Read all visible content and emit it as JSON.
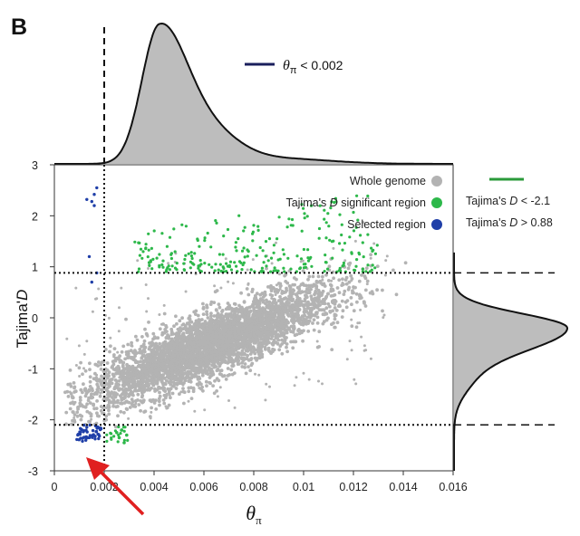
{
  "panel_label": "B",
  "chart_data": {
    "type": "scatter",
    "title": "",
    "xlabel_symbol": "θ",
    "xlabel_subscript": "π",
    "ylabel": "Tajima'D",
    "ylabel_prefix": "Tajima'",
    "ylabel_italic": "D",
    "xlim": [
      0,
      0.016
    ],
    "ylim": [
      -3,
      3
    ],
    "x_ticks": [
      0,
      0.002,
      0.004,
      0.006,
      0.008,
      0.01,
      0.012,
      0.014,
      0.016
    ],
    "x_tick_labels": [
      "0",
      "0.002",
      "0.004",
      "0.006",
      "0.008",
      "0.01",
      "0.012",
      "0.014",
      "0.016"
    ],
    "y_ticks": [
      -3,
      -2,
      -1,
      0,
      1,
      2,
      3
    ],
    "y_tick_labels": [
      "-3",
      "-2",
      "-1",
      "0",
      "1",
      "2",
      "3"
    ],
    "thresholds": {
      "theta_pi_cutoff": 0.002,
      "tajima_d_low": -2.1,
      "tajima_d_high": 0.88
    },
    "legend": {
      "placement": "top-right",
      "entries": [
        {
          "name": "Whole genome",
          "color": "#b3b3b3"
        },
        {
          "name_prefix": "Tajima's ",
          "name_italic": "D",
          "name_suffix": " significant region",
          "name": "Tajima's D significant region",
          "color": "#2db84a"
        },
        {
          "name": "Selected region",
          "color": "#1f3fa8"
        }
      ]
    },
    "threshold_legend": {
      "theta": {
        "symbol": "θ",
        "subscript": "π",
        "text": " < 0.002",
        "color": "#1a1f5c"
      },
      "tajima": {
        "color": "#2a9a3a",
        "lines": [
          {
            "prefix": "Tajima's ",
            "italic": "D",
            "suffix": " < -2.1"
          },
          {
            "prefix": "Tajima's ",
            "italic": "D",
            "suffix": " > 0.88"
          }
        ]
      }
    },
    "series": [
      {
        "name": "Whole genome",
        "color": "#b3b3b3",
        "approx_count": 9000,
        "trend": "positive correlation, centered near theta_pi 0.006, D -0.5"
      },
      {
        "name": "Tajima's D significant region",
        "color": "#2db84a",
        "points": [
          [
            0.0026,
            -2.35
          ],
          [
            0.0027,
            -2.2
          ],
          [
            0.0029,
            -2.3
          ],
          [
            0.0025,
            -2.25
          ],
          [
            0.0028,
            -2.45
          ]
        ],
        "note": "upper cluster between theta_pi 0.003 and 0.013 with D 0.9 to 2.3"
      },
      {
        "name": "Selected region",
        "color": "#1f3fa8",
        "points": [
          [
            0.0017,
            2.55
          ],
          [
            0.0016,
            2.2
          ],
          [
            0.0016,
            2.42
          ],
          [
            0.0015,
            2.28
          ],
          [
            0.0014,
            1.2
          ],
          [
            0.0013,
            2.32
          ],
          [
            0.0015,
            0.7
          ],
          [
            0.0017,
            0.88
          ]
        ],
        "note": "lower-left cluster between theta_pi 0.0008 and 0.0019 with D -2.1 to -2.4"
      }
    ],
    "marginal_top": {
      "variable": "theta_pi",
      "peak_x": 0.0042,
      "shaded_left_of": 0.002,
      "shaded_color": "#2e7fe0",
      "fill_color": "#bdbdbd"
    },
    "marginal_right": {
      "variable": "Tajima's D",
      "peak_y": -0.2,
      "fill_color": "#bdbdbd"
    },
    "annotation": {
      "type": "arrow",
      "color": "#e02020",
      "points_to": "selected region near theta_pi 0.0014, D -2.5"
    }
  }
}
